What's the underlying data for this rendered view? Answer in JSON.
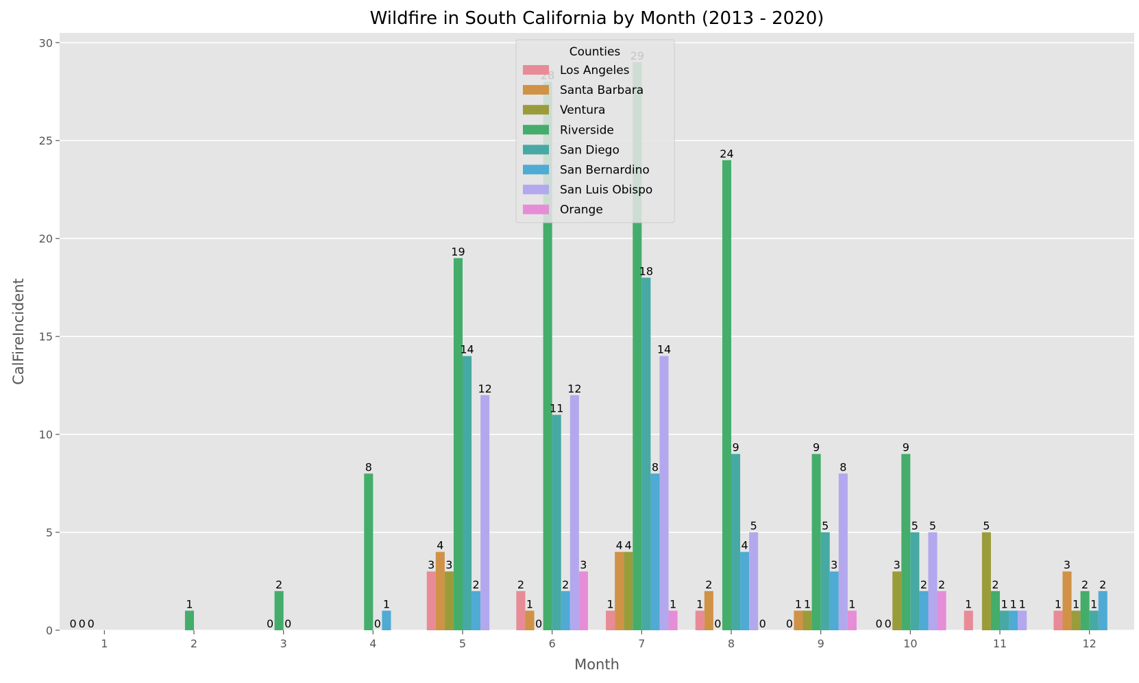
{
  "chart_data": {
    "type": "bar",
    "title": "Wildfire in South California by Month (2013 - 2020)",
    "xlabel": "Month",
    "ylabel": "CalFireIncident",
    "ylim": [
      0,
      30.5
    ],
    "yticks": [
      0,
      5,
      10,
      15,
      20,
      25,
      30
    ],
    "grid": true,
    "legend": {
      "title": "Counties",
      "placement": "top-center"
    },
    "categories": [
      "1",
      "2",
      "3",
      "4",
      "5",
      "6",
      "7",
      "8",
      "9",
      "10",
      "11",
      "12"
    ],
    "series": [
      {
        "name": "Los Angeles",
        "color": "#e88b96",
        "values": [
          0,
          null,
          null,
          null,
          3,
          2,
          1,
          1,
          0,
          0,
          1,
          1
        ]
      },
      {
        "name": "Santa Barbara",
        "color": "#cf9247",
        "values": [
          0,
          null,
          null,
          null,
          4,
          1,
          4,
          2,
          1,
          0,
          null,
          3
        ]
      },
      {
        "name": "Ventura",
        "color": "#9a9c3c",
        "values": [
          0,
          null,
          0,
          null,
          3,
          0,
          4,
          0,
          1,
          3,
          5,
          1
        ]
      },
      {
        "name": "Riverside",
        "color": "#44ad6b",
        "values": [
          null,
          1,
          2,
          8,
          19,
          28,
          29,
          24,
          9,
          9,
          2,
          2
        ]
      },
      {
        "name": "San Diego",
        "color": "#47a9a3",
        "values": [
          null,
          null,
          0,
          0,
          14,
          11,
          18,
          9,
          5,
          5,
          1,
          1
        ]
      },
      {
        "name": "San Bernardino",
        "color": "#4faad4",
        "values": [
          null,
          null,
          null,
          1,
          2,
          2,
          8,
          4,
          3,
          2,
          1,
          2
        ]
      },
      {
        "name": "San Luis Obispo",
        "color": "#b3a8ee",
        "values": [
          null,
          null,
          null,
          null,
          12,
          12,
          14,
          5,
          8,
          5,
          1,
          null
        ]
      },
      {
        "name": "Orange",
        "color": "#e68dd7",
        "values": [
          null,
          null,
          null,
          null,
          null,
          3,
          1,
          0,
          1,
          2,
          null,
          null
        ]
      }
    ]
  }
}
